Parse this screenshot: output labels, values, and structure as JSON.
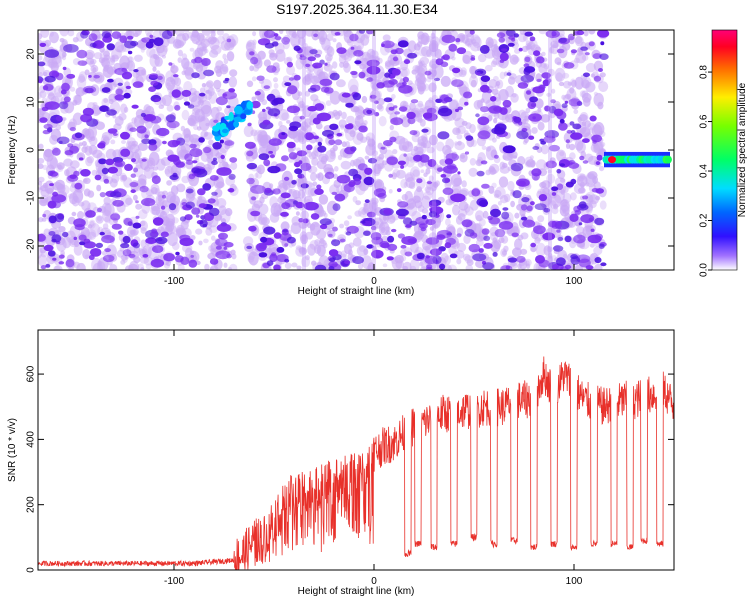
{
  "title": "S197.2025.364.11.30.E34",
  "colors": {
    "snr_line": "#e8302a",
    "speckle": "#6a1ee8",
    "speckle_light": "#c9a8f5"
  },
  "chart_data": [
    {
      "type": "heatmap",
      "title": "S197.2025.364.11.30.E34",
      "xlabel": "Height of straight line (km)",
      "ylabel": "Frequency (Hz)",
      "xlim": [
        -168,
        150
      ],
      "ylim": [
        -25,
        25
      ],
      "xticks": [
        -100,
        0,
        100
      ],
      "xtick_labels": [
        "-100",
        "0",
        "100"
      ],
      "yticks": [
        -20,
        -10,
        0,
        10,
        20
      ],
      "ytick_labels": [
        "-20",
        "-10",
        "0",
        "10",
        "20"
      ],
      "colorbar": {
        "label": "Normalized spectral amplitude",
        "range": [
          0,
          0.97
        ],
        "ticks": [
          0.0,
          0.2,
          0.4,
          0.6,
          0.8
        ],
        "tick_labels": [
          "0.0",
          "0.2",
          "0.4",
          "0.6",
          "0.8"
        ]
      },
      "features": [
        {
          "name": "noise-field",
          "x_range": [
            -168,
            115
          ],
          "f_range": [
            -25,
            25
          ],
          "amplitude": 0.1
        },
        {
          "name": "clear-gap",
          "x_range": [
            -70,
            -63
          ]
        },
        {
          "name": "drifting-signal",
          "x_range": [
            -80,
            -62
          ],
          "f_range": [
            3,
            9
          ],
          "amplitude": 0.3
        },
        {
          "name": "tone-line",
          "x_range": [
            115,
            148
          ],
          "f_center": -2,
          "amplitude": 0.4,
          "peak": 0.9,
          "peak_x": 119
        }
      ]
    },
    {
      "type": "line",
      "xlabel": "Height of straight line (km)",
      "ylabel": "SNR (10 * v/v)",
      "xlim": [
        -168,
        150
      ],
      "ylim": [
        0,
        735
      ],
      "xticks": [
        -100,
        0,
        100
      ],
      "xtick_labels": [
        "-100",
        "0",
        "100"
      ],
      "yticks": [
        0,
        200,
        400,
        600
      ],
      "ytick_labels": [
        "0",
        "200",
        "400",
        "600"
      ],
      "series": [
        {
          "name": "SNR",
          "x": [
            -168,
            -160,
            -150,
            -140,
            -130,
            -120,
            -110,
            -100,
            -90,
            -80,
            -70,
            -65,
            -60,
            -55,
            -50,
            -45,
            -40,
            -35,
            -30,
            -25,
            -20,
            -15,
            -10,
            -5,
            0,
            5,
            10,
            15,
            20,
            25,
            30,
            35,
            40,
            45,
            50,
            55,
            60,
            65,
            70,
            75,
            80,
            85,
            90,
            95,
            100,
            105,
            110,
            115,
            120,
            125,
            130,
            135,
            140,
            145,
            150
          ],
          "values": [
            20,
            20,
            20,
            20,
            20,
            20,
            20,
            20,
            20,
            25,
            30,
            50,
            90,
            100,
            160,
            200,
            230,
            250,
            240,
            260,
            270,
            280,
            290,
            290,
            360,
            380,
            390,
            420,
            440,
            450,
            470,
            480,
            480,
            490,
            490,
            500,
            500,
            500,
            520,
            520,
            530,
            600,
            540,
            600,
            560,
            520,
            510,
            500,
            510,
            520,
            520,
            530,
            540,
            550,
            500
          ],
          "dropouts": [
            {
              "x": 17,
              "value": 50
            },
            {
              "x": 22,
              "value": 80
            },
            {
              "x": 30,
              "value": 70
            },
            {
              "x": 40,
              "value": 80
            },
            {
              "x": 50,
              "value": 100
            },
            {
              "x": 60,
              "value": 80
            },
            {
              "x": 70,
              "value": 90
            },
            {
              "x": 80,
              "value": 70
            },
            {
              "x": 90,
              "value": 80
            },
            {
              "x": 100,
              "value": 70
            },
            {
              "x": 110,
              "value": 80
            },
            {
              "x": 120,
              "value": 80
            },
            {
              "x": 128,
              "value": 70
            },
            {
              "x": 135,
              "value": 90
            },
            {
              "x": 143,
              "value": 80
            }
          ]
        }
      ]
    }
  ]
}
